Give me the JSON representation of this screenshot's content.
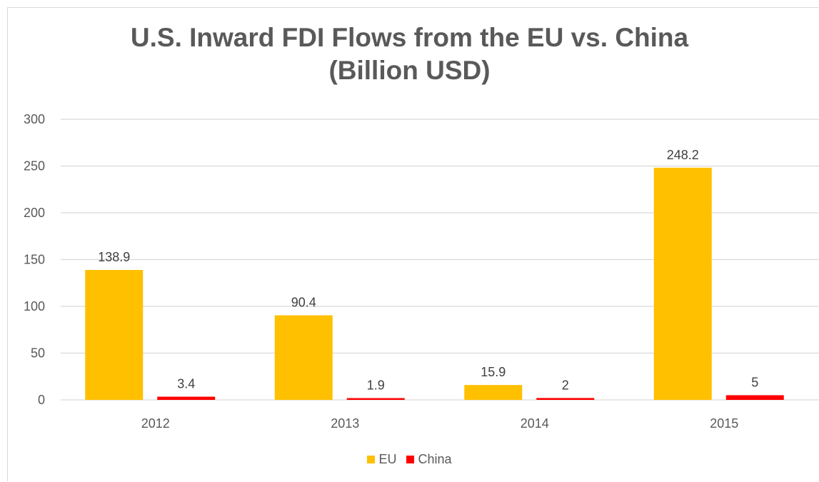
{
  "chart_data": {
    "type": "bar",
    "title": "U.S. Inward FDI Flows from the EU vs. China",
    "subtitle": "(Billion USD)",
    "categories": [
      "2012",
      "2013",
      "2014",
      "2015"
    ],
    "series": [
      {
        "name": "EU",
        "color": "#FFC000",
        "values": [
          138.9,
          90.4,
          15.9,
          248.2
        ],
        "labels": [
          "138.9",
          "90.4",
          "15.9",
          "248.2"
        ]
      },
      {
        "name": "China",
        "color": "#FF0000",
        "values": [
          3.4,
          1.9,
          2,
          5
        ],
        "labels": [
          "3.4",
          "1.9",
          "2",
          "5"
        ]
      }
    ],
    "ylim": [
      0,
      300
    ],
    "yticks": [
      "0",
      "50",
      "100",
      "150",
      "200",
      "250",
      "300"
    ],
    "grid": true,
    "legend_position": "bottom"
  }
}
